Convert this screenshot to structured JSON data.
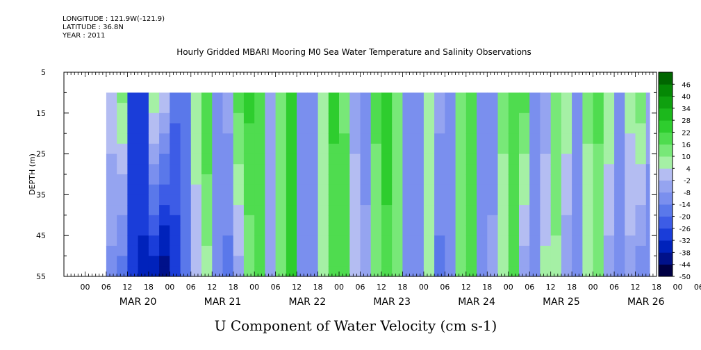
{
  "header": {
    "longitude": "LONGITUDE : 121.9W(-121.9)",
    "latitude": "LATITUDE : 36.8N",
    "year": "YEAR : 2011"
  },
  "title": "Hourly Gridded MBARI Mooring M0 Sea Water Temperature and Salinity Observations",
  "chart_data": {
    "type": "heatmap",
    "title": "Hourly Gridded MBARI Mooring M0 Sea Water Temperature and Salinity Observations",
    "xlabel": "U Component of Water Velocity (cm s-1)",
    "ylabel": "DEPTH (m)",
    "ylim": [
      55,
      5
    ],
    "y_ticks": [
      "5",
      "15",
      "25",
      "35",
      "45",
      "55"
    ],
    "y_tick_values": [
      5,
      15,
      25,
      35,
      45,
      55
    ],
    "data_depth_range": [
      10,
      55
    ],
    "x_hour_ticks": [
      "00",
      "06",
      "12",
      "18",
      "00",
      "06",
      "12",
      "18",
      "00",
      "06",
      "12",
      "18",
      "00",
      "06",
      "12",
      "18",
      "00",
      "06",
      "12",
      "18",
      "00",
      "06",
      "12",
      "18",
      "00",
      "06",
      "12",
      "18",
      "00",
      "06",
      "12",
      "18"
    ],
    "x_date_labels": [
      "MAR 20",
      "MAR 21",
      "MAR 22",
      "MAR 23",
      "MAR 24",
      "MAR 25",
      "MAR 26"
    ],
    "x_hours_range": [
      -18,
      150
    ],
    "data_hours_range": [
      -6,
      150
    ],
    "colorbar": {
      "tick_labels": [
        "46",
        "40",
        "34",
        "28",
        "22",
        "16",
        "10",
        "4",
        "-2",
        "-8",
        "-14",
        "-20",
        "-26",
        "-32",
        "-38",
        "-44",
        "-50"
      ],
      "min": -50,
      "max": 52,
      "step": 6,
      "colors_low_to_high": [
        "#000044",
        "#00118a",
        "#0022bb",
        "#1a3dd9",
        "#3d5ce6",
        "#5a78ea",
        "#7a8fee",
        "#95a4f0",
        "#b4bdf2",
        "#a5f0a5",
        "#78e878",
        "#4fdc4f",
        "#2ecd2e",
        "#1cb81c",
        "#0fa00f",
        "#058805",
        "#006600"
      ]
    },
    "u_velocity_profile_by_time": [
      {
        "hour": -6,
        "surface": 2,
        "bottom": -10
      },
      {
        "hour": -3,
        "surface": 12,
        "bottom": -18
      },
      {
        "hour": 0,
        "surface": -28,
        "bottom": -26
      },
      {
        "hour": 3,
        "surface": -26,
        "bottom": -34
      },
      {
        "hour": 6,
        "surface": 10,
        "bottom": -36
      },
      {
        "hour": 9,
        "surface": 2,
        "bottom": -44
      },
      {
        "hour": 12,
        "surface": -18,
        "bottom": -30
      },
      {
        "hour": 15,
        "surface": -14,
        "bottom": -18
      },
      {
        "hour": 18,
        "surface": 8,
        "bottom": 0
      },
      {
        "hour": 21,
        "surface": 22,
        "bottom": 8
      },
      {
        "hour": 24,
        "surface": -10,
        "bottom": -8
      },
      {
        "hour": 27,
        "surface": -6,
        "bottom": -16
      },
      {
        "hour": 30,
        "surface": 18,
        "bottom": -4
      },
      {
        "hour": 33,
        "surface": 24,
        "bottom": 12
      },
      {
        "hour": 36,
        "surface": 20,
        "bottom": 16
      },
      {
        "hour": 39,
        "surface": -6,
        "bottom": -4
      },
      {
        "hour": 42,
        "surface": 16,
        "bottom": 10
      },
      {
        "hour": 45,
        "surface": 22,
        "bottom": 22
      },
      {
        "hour": 48,
        "surface": -14,
        "bottom": -8
      },
      {
        "hour": 51,
        "surface": -8,
        "bottom": -14
      },
      {
        "hour": 54,
        "surface": 10,
        "bottom": 4
      },
      {
        "hour": 57,
        "surface": 24,
        "bottom": 16
      },
      {
        "hour": 60,
        "surface": 14,
        "bottom": 22
      },
      {
        "hour": 63,
        "surface": -4,
        "bottom": 2
      },
      {
        "hour": 66,
        "surface": -14,
        "bottom": -4
      },
      {
        "hour": 69,
        "surface": 18,
        "bottom": 10
      },
      {
        "hour": 72,
        "surface": 28,
        "bottom": 18
      },
      {
        "hour": 75,
        "surface": 14,
        "bottom": 12
      },
      {
        "hour": 78,
        "surface": -10,
        "bottom": -8
      },
      {
        "hour": 81,
        "surface": -8,
        "bottom": -14
      },
      {
        "hour": 84,
        "surface": 8,
        "bottom": 10
      },
      {
        "hour": 87,
        "surface": -6,
        "bottom": -16
      },
      {
        "hour": 90,
        "surface": -10,
        "bottom": -8
      },
      {
        "hour": 93,
        "surface": 16,
        "bottom": 14
      },
      {
        "hour": 96,
        "surface": 20,
        "bottom": 20
      },
      {
        "hour": 99,
        "surface": -8,
        "bottom": -10
      },
      {
        "hour": 102,
        "surface": -12,
        "bottom": -6
      },
      {
        "hour": 105,
        "surface": 12,
        "bottom": 6
      },
      {
        "hour": 108,
        "surface": 22,
        "bottom": 18
      },
      {
        "hour": 111,
        "surface": 18,
        "bottom": -6
      },
      {
        "hour": 114,
        "surface": -10,
        "bottom": -12
      },
      {
        "hour": 117,
        "surface": -6,
        "bottom": 6
      },
      {
        "hour": 120,
        "surface": 16,
        "bottom": 8
      },
      {
        "hour": 123,
        "surface": 10,
        "bottom": -8
      },
      {
        "hour": 126,
        "surface": -8,
        "bottom": -12
      },
      {
        "hour": 129,
        "surface": 12,
        "bottom": 4
      },
      {
        "hour": 132,
        "surface": 18,
        "bottom": 10
      },
      {
        "hour": 135,
        "surface": 10,
        "bottom": -6
      },
      {
        "hour": 138,
        "surface": -10,
        "bottom": -10
      },
      {
        "hour": 141,
        "surface": 6,
        "bottom": -4
      },
      {
        "hour": 144,
        "surface": 14,
        "bottom": -12
      },
      {
        "hour": 147,
        "surface": -4,
        "bottom": -14
      },
      {
        "hour": 150,
        "surface": 8,
        "bottom": -8
      }
    ]
  }
}
